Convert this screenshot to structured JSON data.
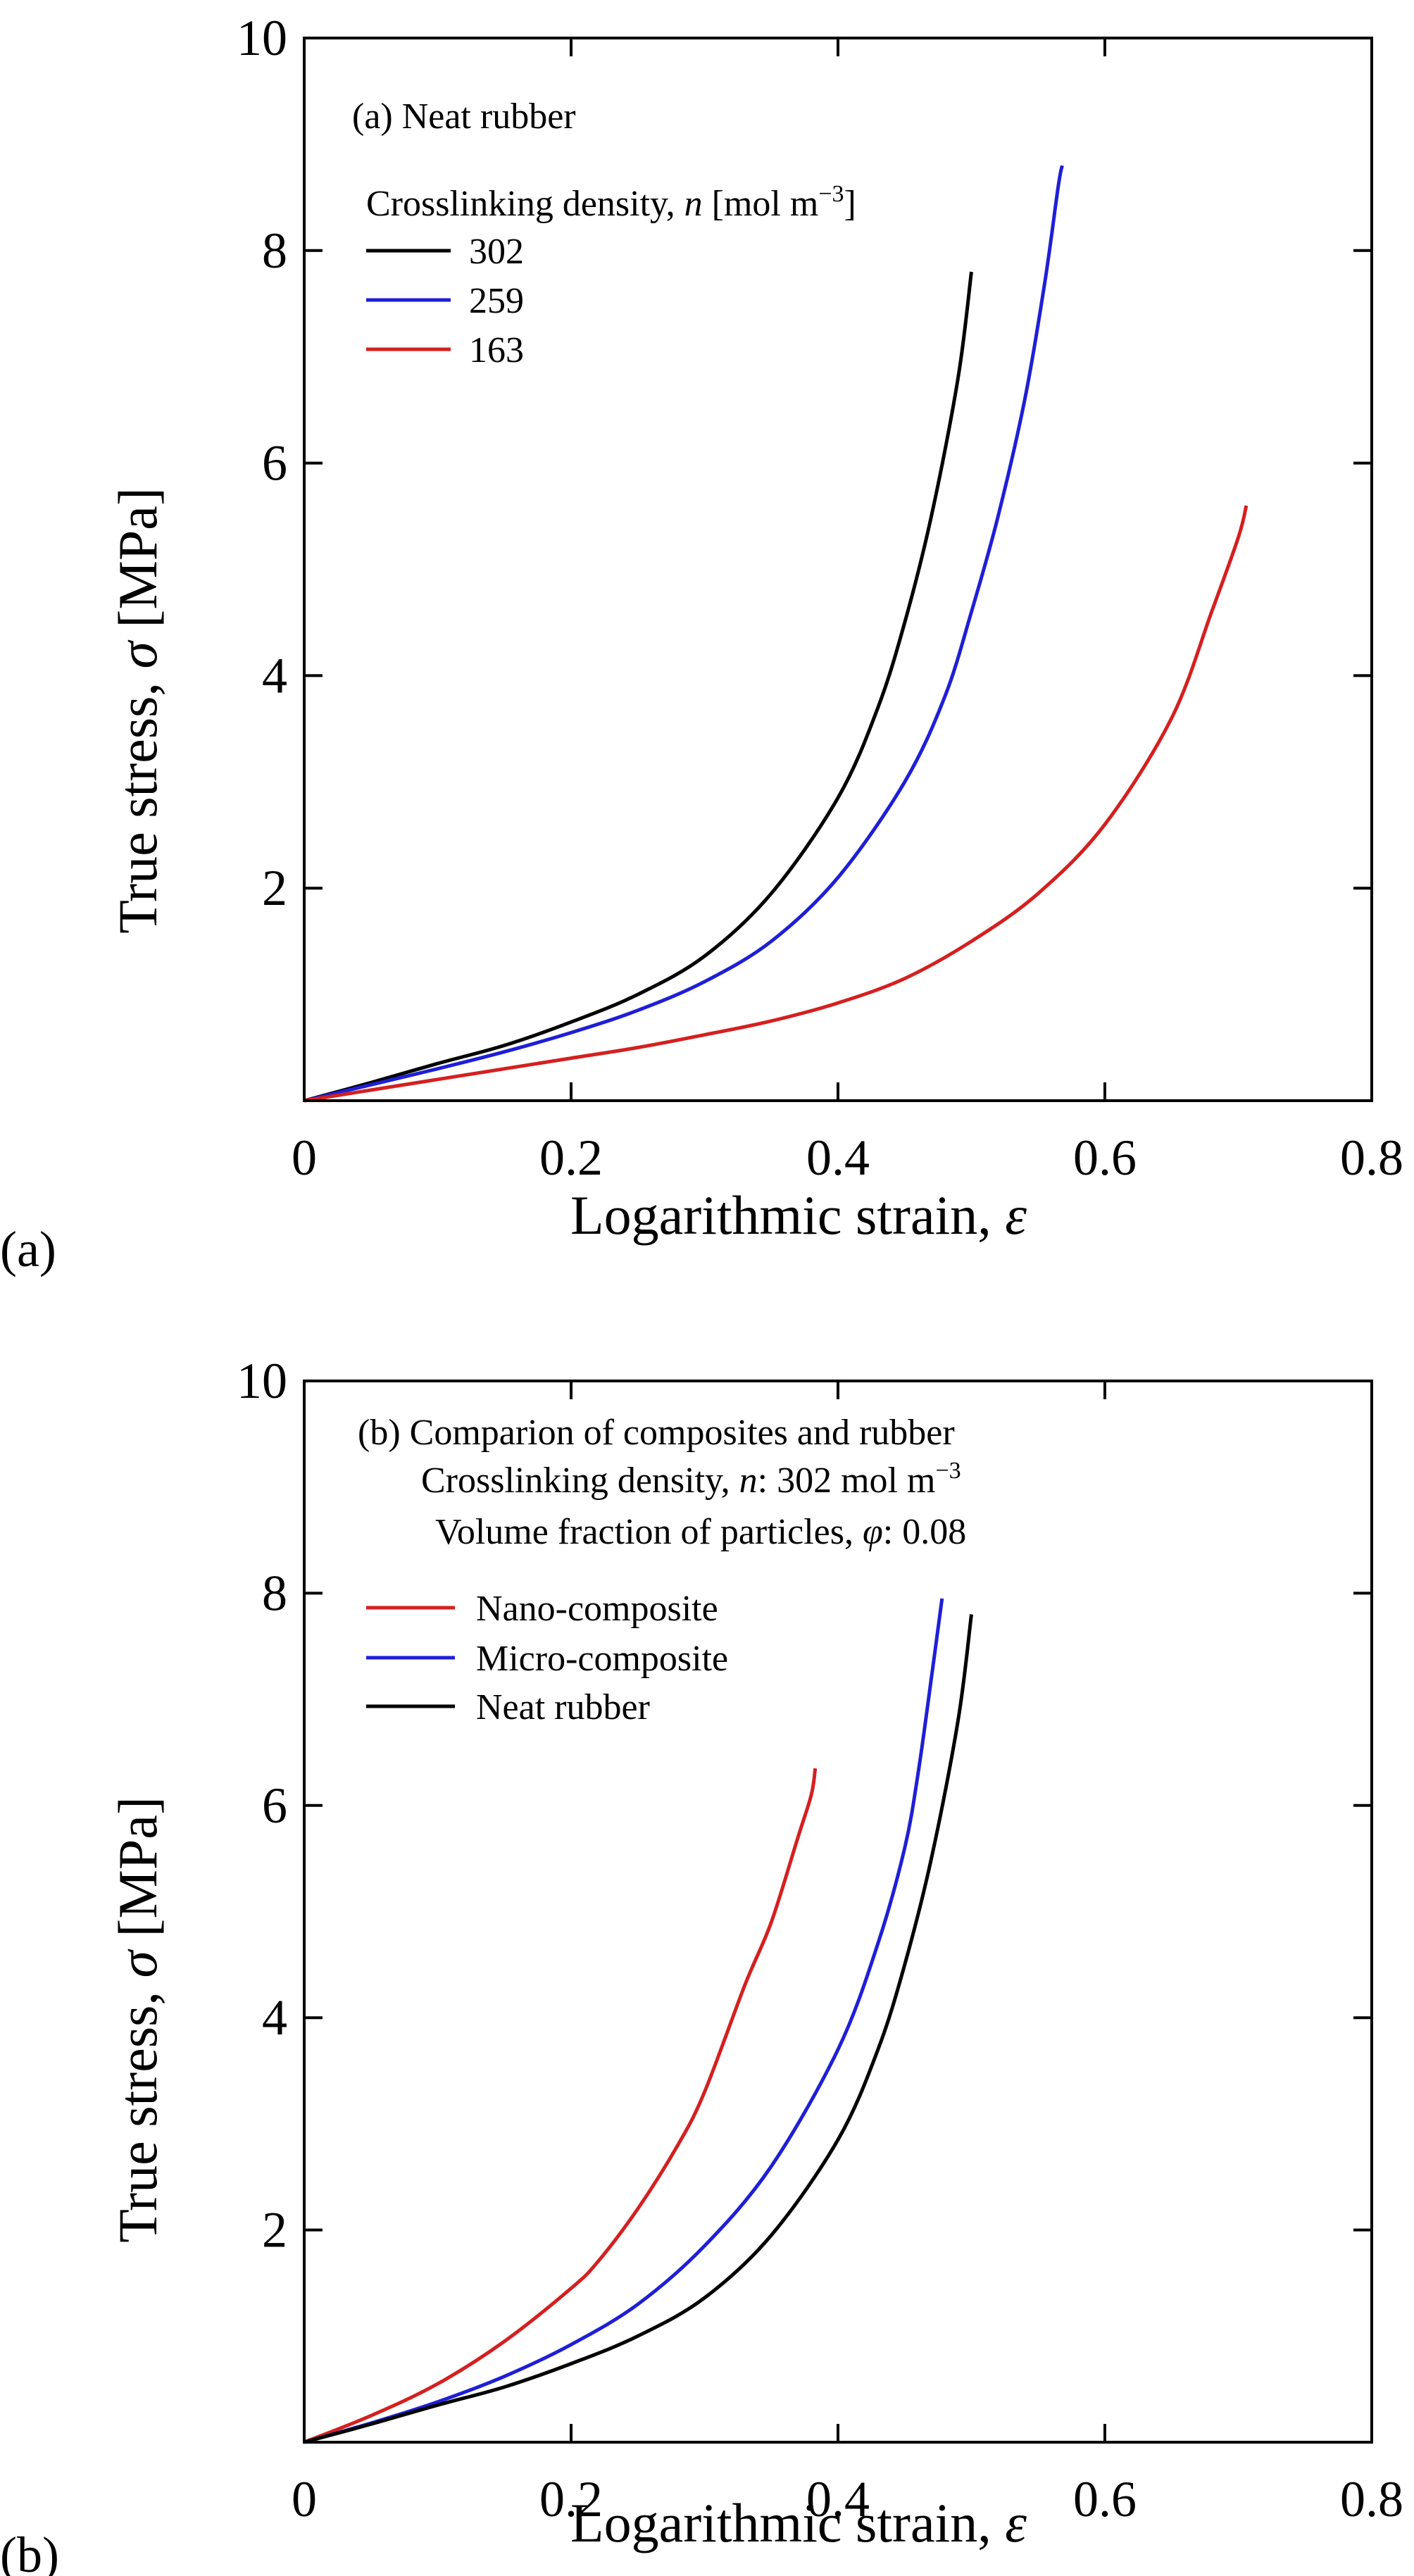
{
  "panel_labels": [
    "(a)",
    "(b)"
  ],
  "chart_data": [
    {
      "type": "line",
      "title": "(a) Neat rubber",
      "xlabel": "Logarithmic strain, ε",
      "ylabel": "True stress, σ [MPa]",
      "xlim": [
        0,
        0.8
      ],
      "ylim": [
        0,
        10
      ],
      "xticks": [
        "0",
        "0.2",
        "0.4",
        "0.6",
        "0.8"
      ],
      "yticks": [
        "2",
        "4",
        "6",
        "8",
        "10"
      ],
      "grid": false,
      "legend_position": "top-left",
      "legend_title": "Crosslinking density, n [mol m⁻³]",
      "series": [
        {
          "name": "302",
          "color": "#000000",
          "points": [
            [
              0,
              0
            ],
            [
              0.05,
              0.17
            ],
            [
              0.1,
              0.35
            ],
            [
              0.15,
              0.52
            ],
            [
              0.2,
              0.74
            ],
            [
              0.25,
              1.0
            ],
            [
              0.3,
              1.36
            ],
            [
              0.35,
              1.95
            ],
            [
              0.4,
              2.85
            ],
            [
              0.43,
              3.7
            ],
            [
              0.45,
              4.5
            ],
            [
              0.47,
              5.5
            ],
            [
              0.49,
              6.8
            ],
            [
              0.5,
              7.8
            ]
          ]
        },
        {
          "name": "259",
          "color": "#1f1fd6",
          "points": [
            [
              0,
              0
            ],
            [
              0.05,
              0.15
            ],
            [
              0.1,
              0.3
            ],
            [
              0.15,
              0.46
            ],
            [
              0.2,
              0.64
            ],
            [
              0.25,
              0.85
            ],
            [
              0.3,
              1.12
            ],
            [
              0.35,
              1.5
            ],
            [
              0.4,
              2.1
            ],
            [
              0.45,
              3.0
            ],
            [
              0.48,
              3.8
            ],
            [
              0.5,
              4.6
            ],
            [
              0.52,
              5.5
            ],
            [
              0.54,
              6.6
            ],
            [
              0.555,
              7.7
            ],
            [
              0.565,
              8.6
            ],
            [
              0.568,
              8.8
            ]
          ]
        },
        {
          "name": "163",
          "color": "#d42020",
          "points": [
            [
              0,
              0
            ],
            [
              0.05,
              0.1
            ],
            [
              0.1,
              0.2
            ],
            [
              0.15,
              0.3
            ],
            [
              0.2,
              0.4
            ],
            [
              0.25,
              0.5
            ],
            [
              0.3,
              0.62
            ],
            [
              0.35,
              0.75
            ],
            [
              0.4,
              0.92
            ],
            [
              0.45,
              1.15
            ],
            [
              0.5,
              1.5
            ],
            [
              0.55,
              1.95
            ],
            [
              0.6,
              2.6
            ],
            [
              0.65,
              3.6
            ],
            [
              0.68,
              4.6
            ],
            [
              0.7,
              5.3
            ],
            [
              0.706,
              5.6
            ]
          ]
        }
      ]
    },
    {
      "type": "line",
      "title": "(b) Comparion of composites and rubber",
      "annotations": [
        "Crosslinking density, n: 302 mol m⁻³",
        "Volume fraction of particles, φ: 0.08"
      ],
      "xlabel": "Logarithmic strain, ε",
      "ylabel": "True stress, σ [MPa]",
      "xlim": [
        0,
        0.8
      ],
      "ylim": [
        0,
        10
      ],
      "xticks": [
        "0",
        "0.2",
        "0.4",
        "0.6",
        "0.8"
      ],
      "yticks": [
        "2",
        "4",
        "6",
        "8",
        "10"
      ],
      "grid": false,
      "legend_position": "top-left",
      "series": [
        {
          "name": "Nano-composite",
          "color": "#d42020",
          "points": [
            [
              0,
              0
            ],
            [
              0.05,
              0.25
            ],
            [
              0.1,
              0.55
            ],
            [
              0.15,
              0.95
            ],
            [
              0.2,
              1.45
            ],
            [
              0.22,
              1.7
            ],
            [
              0.25,
              2.2
            ],
            [
              0.28,
              2.8
            ],
            [
              0.3,
              3.3
            ],
            [
              0.33,
              4.3
            ],
            [
              0.35,
              4.9
            ],
            [
              0.37,
              5.7
            ],
            [
              0.38,
              6.1
            ],
            [
              0.383,
              6.35
            ]
          ]
        },
        {
          "name": "Micro-composite",
          "color": "#1f1fd6",
          "points": [
            [
              0,
              0
            ],
            [
              0.05,
              0.18
            ],
            [
              0.1,
              0.38
            ],
            [
              0.15,
              0.62
            ],
            [
              0.2,
              0.92
            ],
            [
              0.25,
              1.3
            ],
            [
              0.3,
              1.85
            ],
            [
              0.35,
              2.6
            ],
            [
              0.4,
              3.7
            ],
            [
              0.43,
              4.7
            ],
            [
              0.45,
              5.6
            ],
            [
              0.46,
              6.3
            ],
            [
              0.47,
              7.2
            ],
            [
              0.478,
              7.95
            ]
          ]
        },
        {
          "name": "Neat rubber",
          "color": "#000000",
          "points": [
            [
              0,
              0
            ],
            [
              0.05,
              0.17
            ],
            [
              0.1,
              0.35
            ],
            [
              0.15,
              0.52
            ],
            [
              0.2,
              0.74
            ],
            [
              0.25,
              1.0
            ],
            [
              0.3,
              1.36
            ],
            [
              0.35,
              1.95
            ],
            [
              0.4,
              2.85
            ],
            [
              0.43,
              3.7
            ],
            [
              0.45,
              4.5
            ],
            [
              0.47,
              5.5
            ],
            [
              0.49,
              6.8
            ],
            [
              0.5,
              7.8
            ]
          ]
        }
      ]
    }
  ]
}
